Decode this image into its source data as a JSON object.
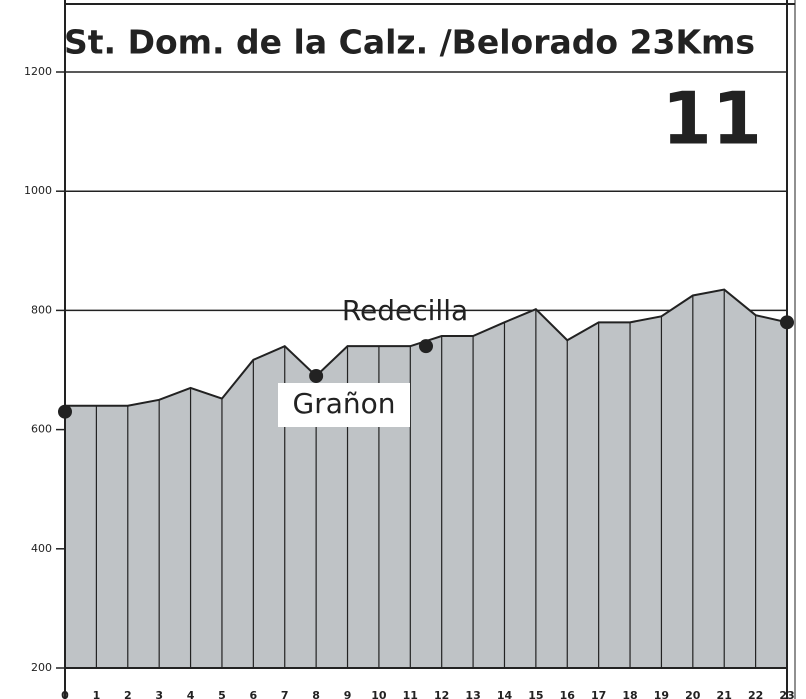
{
  "chart_data": {
    "type": "area",
    "title": "St. Dom. de la Calz. /Belorado 23Kms",
    "subtitle": "11",
    "x": [
      0,
      1,
      2,
      3,
      4,
      5,
      6,
      7,
      8,
      9,
      10,
      11,
      12,
      13,
      14,
      15,
      16,
      17,
      18,
      19,
      20,
      21,
      22,
      23
    ],
    "series": [
      {
        "color": "#bfc3c6",
        "values": [
          640,
          640,
          640,
          650,
          670,
          652,
          717,
          740,
          690,
          740,
          740,
          740,
          757,
          757,
          780,
          802,
          750,
          780,
          780,
          790,
          825,
          835,
          792,
          780
        ]
      }
    ],
    "markers": {
      "x": [
        0,
        8,
        11.5,
        23
      ],
      "y": [
        630,
        690,
        740,
        780
      ]
    },
    "annotations": [
      {
        "text": "Grañon"
      },
      {
        "text": "Redecilla"
      }
    ],
    "xlim": [
      0,
      23
    ],
    "xticks": [
      0,
      1,
      2,
      3,
      4,
      5,
      6,
      7,
      8,
      9,
      10,
      11,
      12,
      13,
      14,
      15,
      16,
      17,
      18,
      19,
      20,
      21,
      22,
      23
    ],
    "ylim": [
      200,
      1200
    ],
    "yticks": [
      200,
      400,
      600,
      800,
      1000,
      1200
    ],
    "grid": true
  }
}
